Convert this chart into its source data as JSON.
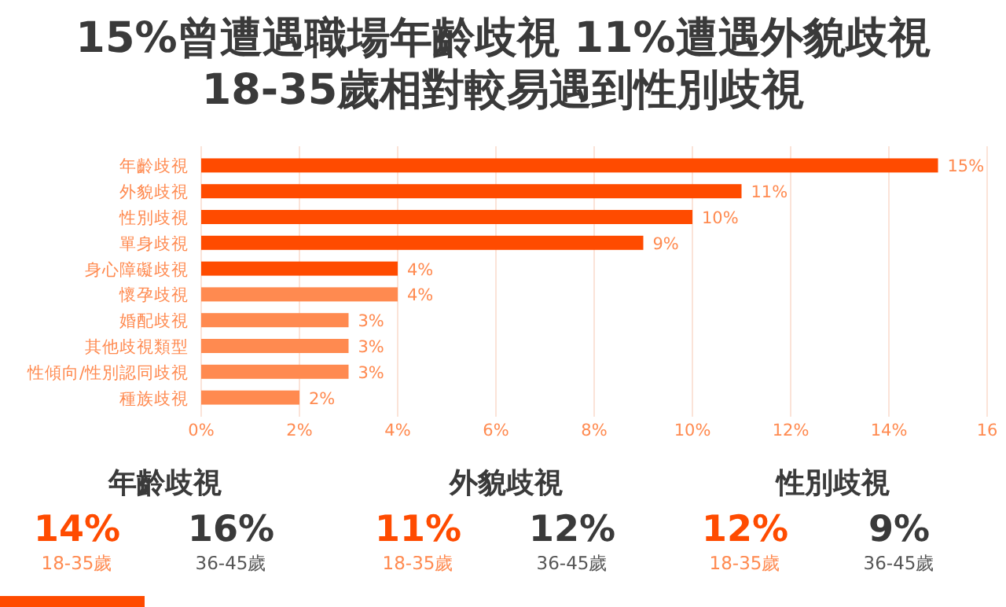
{
  "chart_data": [
    {
      "type": "bar",
      "orientation": "horizontal",
      "title": "15%曾遭遇職場年齡歧視  11%遭遇外貌歧視\n18-35歲相對較易遇到性別歧視",
      "categories": [
        "年齡歧視",
        "外貌歧視",
        "性別歧視",
        "單身歧視",
        "身心障礙歧視",
        "懷孕歧視",
        "婚配歧視",
        "其他歧視類型",
        "性傾向/性別認同歧視",
        "種族歧視"
      ],
      "values": [
        15,
        11,
        10,
        9,
        4,
        4,
        3,
        3,
        3,
        2
      ],
      "value_labels": [
        "15%",
        "11%",
        "10%",
        "9%",
        "4%",
        "4%",
        "3%",
        "3%",
        "3%",
        "2%"
      ],
      "colors": [
        "#ff4b00",
        "#ff4b00",
        "#ff4b00",
        "#ff4b00",
        "#ff4b00",
        "#ff8a50",
        "#ff8a50",
        "#ff8a50",
        "#ff8a50",
        "#ff8a50"
      ],
      "xlim": [
        0,
        16
      ],
      "xticks": [
        {
          "value": 0,
          "label": "0%"
        },
        {
          "value": 2,
          "label": "2%"
        },
        {
          "value": 4,
          "label": "4%"
        },
        {
          "value": 6,
          "label": "6%"
        },
        {
          "value": 8,
          "label": "8%"
        },
        {
          "value": 10,
          "label": "10%"
        },
        {
          "value": 12,
          "label": "12%"
        },
        {
          "value": 14,
          "label": "14%"
        },
        {
          "value": 16,
          "label": "16"
        }
      ],
      "grid": "x"
    },
    {
      "type": "other",
      "annotations": [
        "年齡歧視",
        "14%",
        "18-35歲",
        "16%",
        "36-45歲",
        "外貌歧視",
        "11%",
        "18-35歲",
        "12%",
        "36-45歲",
        "性別歧視",
        "12%",
        "18-35歲",
        "9%",
        "36-45歲"
      ]
    }
  ]
}
